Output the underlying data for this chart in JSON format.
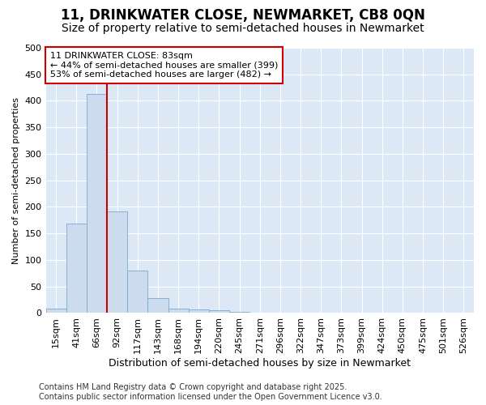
{
  "title": "11, DRINKWATER CLOSE, NEWMARKET, CB8 0QN",
  "subtitle": "Size of property relative to semi-detached houses in Newmarket",
  "xlabel": "Distribution of semi-detached houses by size in Newmarket",
  "ylabel": "Number of semi-detached properties",
  "categories": [
    "15sqm",
    "41sqm",
    "66sqm",
    "92sqm",
    "117sqm",
    "143sqm",
    "168sqm",
    "194sqm",
    "220sqm",
    "245sqm",
    "271sqm",
    "296sqm",
    "322sqm",
    "347sqm",
    "373sqm",
    "399sqm",
    "424sqm",
    "450sqm",
    "475sqm",
    "501sqm",
    "526sqm"
  ],
  "values": [
    9,
    168,
    413,
    191,
    80,
    28,
    9,
    7,
    5,
    2,
    0,
    0,
    0,
    0,
    0,
    0,
    0,
    0,
    0,
    0,
    0
  ],
  "bar_color": "#ccdcee",
  "bar_edge_color": "#7aaad0",
  "vline_x": 2.5,
  "vline_color": "#cc0000",
  "annotation_text": "11 DRINKWATER CLOSE: 83sqm\n← 44% of semi-detached houses are smaller (399)\n53% of semi-detached houses are larger (482) →",
  "annotation_box_facecolor": "#ffffff",
  "annotation_box_edgecolor": "#cc0000",
  "ylim": [
    0,
    500
  ],
  "yticks": [
    0,
    50,
    100,
    150,
    200,
    250,
    300,
    350,
    400,
    450,
    500
  ],
  "fig_bg_color": "#ffffff",
  "plot_bg_color": "#dce8f5",
  "grid_color": "#ffffff",
  "title_fontsize": 12,
  "subtitle_fontsize": 10,
  "ylabel_fontsize": 8,
  "xlabel_fontsize": 9,
  "tick_fontsize": 8,
  "ann_fontsize": 8,
  "footer_fontsize": 7,
  "footer_line1": "Contains HM Land Registry data © Crown copyright and database right 2025.",
  "footer_line2": "Contains public sector information licensed under the Open Government Licence v3.0."
}
